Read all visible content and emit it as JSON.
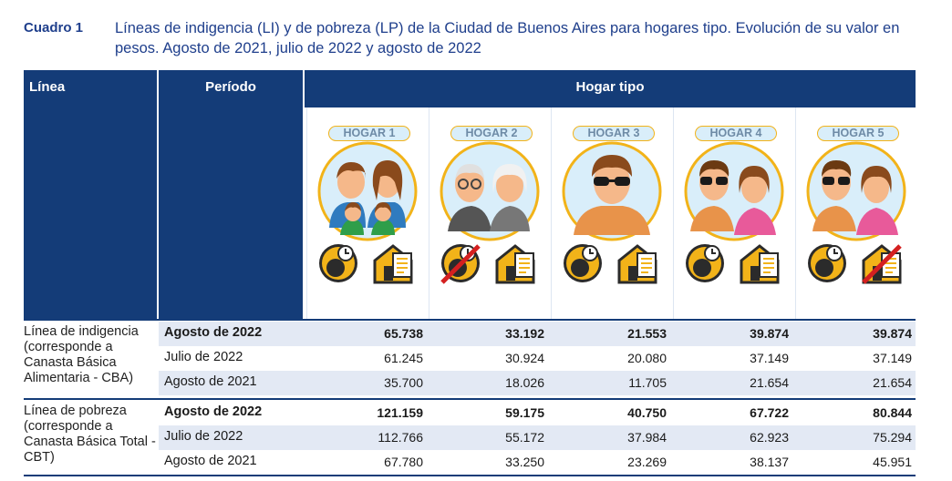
{
  "caption": {
    "number": "Cuadro 1",
    "title": "Líneas de indigencia (LI) y de pobreza (LP) de la Ciudad de Buenos Aires para hogares tipo. Evolución de su valor en pesos. Agosto de 2021, julio de 2022 y agosto de 2022"
  },
  "header": {
    "linea": "Línea",
    "periodo": "Período",
    "hogar_tipo": "Hogar tipo"
  },
  "hogares": [
    "HOGAR 1",
    "HOGAR 2",
    "HOGAR 3",
    "HOGAR 4",
    "HOGAR 5"
  ],
  "groups": [
    {
      "label": "Línea de indigencia (corresponde a Canasta Básica Alimentaria - CBA)",
      "rows": [
        {
          "periodo": "Agosto de 2022",
          "values": [
            "65.738",
            "33.192",
            "21.553",
            "39.874",
            "39.874"
          ]
        },
        {
          "periodo": "Julio de 2022",
          "values": [
            "61.245",
            "30.924",
            "20.080",
            "37.149",
            "37.149"
          ]
        },
        {
          "periodo": "Agosto de 2021",
          "values": [
            "35.700",
            "18.026",
            "11.705",
            "21.654",
            "21.654"
          ]
        }
      ]
    },
    {
      "label": "Línea de pobreza (corresponde a Canasta Básica Total - CBT)",
      "rows": [
        {
          "periodo": "Agosto de 2022",
          "values": [
            "121.159",
            "59.175",
            "40.750",
            "67.722",
            "80.844"
          ]
        },
        {
          "periodo": "Julio de 2022",
          "values": [
            "112.766",
            "55.172",
            "37.984",
            "62.923",
            "75.294"
          ]
        },
        {
          "periodo": "Agosto de 2021",
          "values": [
            "67.780",
            "33.250",
            "23.269",
            "38.137",
            "45.951"
          ]
        }
      ]
    }
  ],
  "colors": {
    "header": "#143c78",
    "accent": "#f2b319",
    "shade": "#e3e9f4",
    "title": "#1f3f8c"
  }
}
